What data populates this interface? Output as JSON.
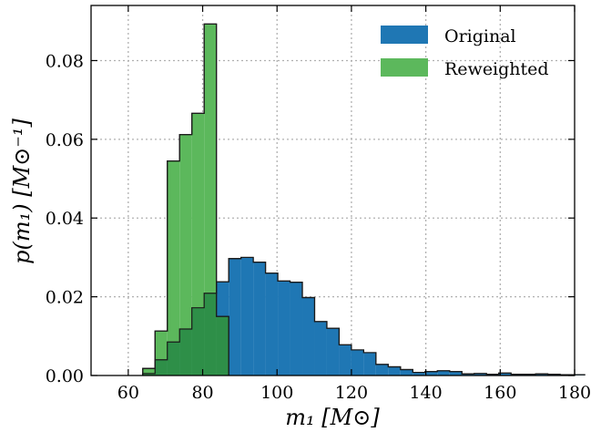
{
  "chart_data": {
    "type": "histogram",
    "xlabel": "m₁ [M⊙]",
    "ylabel": "p(m₁) [M⊙⁻¹]",
    "xlim": [
      50,
      180
    ],
    "ylim": [
      0,
      0.094
    ],
    "xticks": [
      60,
      80,
      100,
      120,
      140,
      160,
      180
    ],
    "yticks": [
      0.0,
      0.02,
      0.04,
      0.06,
      0.08
    ],
    "ytick_labels": [
      "0.00",
      "0.02",
      "0.04",
      "0.06",
      "0.08"
    ],
    "grid": true,
    "legend_position": "top-right",
    "bin_width": 3.3,
    "series": [
      {
        "name": "Original",
        "color": "#1f77b4",
        "bin_start": 63.9,
        "values": [
          0.0005,
          0.004,
          0.0085,
          0.0118,
          0.0172,
          0.0209,
          0.0238,
          0.0297,
          0.03,
          0.0288,
          0.026,
          0.024,
          0.0237,
          0.0198,
          0.0137,
          0.012,
          0.0078,
          0.0065,
          0.0058,
          0.0028,
          0.0022,
          0.0015,
          0.0008,
          0.001,
          0.0012,
          0.001,
          0.0004,
          0.0005,
          0.0003,
          0.0006,
          0.0003,
          0.0003,
          0.0004,
          0.0003,
          0.0002,
          0.0002
        ]
      },
      {
        "name": "Reweighted",
        "color": "#5cb85c",
        "bin_start": 63.9,
        "values": [
          0.0018,
          0.0113,
          0.0545,
          0.0612,
          0.0666,
          0.0893,
          0.015
        ]
      }
    ]
  }
}
